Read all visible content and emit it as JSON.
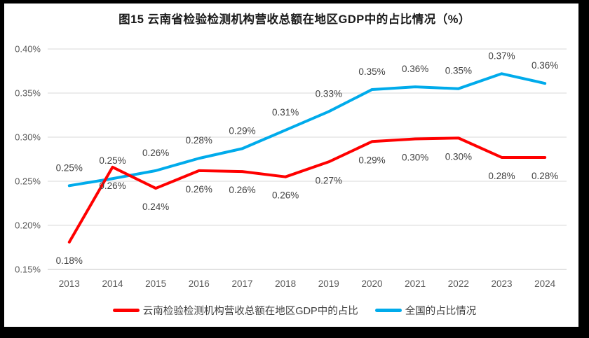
{
  "title": "图15 云南省检验检测机构营收总额在地区GDP中的占比情况（%）",
  "chart_data": {
    "type": "line",
    "title": "图15 云南省检验检测机构营收总额在地区GDP中的占比情况（%）",
    "categories": [
      "2013",
      "2014",
      "2015",
      "2016",
      "2017",
      "2018",
      "2019",
      "2020",
      "2021",
      "2022",
      "2023",
      "2024"
    ],
    "series": [
      {
        "name": "云南检验检测机构营收总额在地区GDP中的占比",
        "color": "#FF0000",
        "label_position": "below",
        "values": [
          0.18,
          0.26,
          0.24,
          0.26,
          0.26,
          0.26,
          0.27,
          0.29,
          0.3,
          0.3,
          0.28,
          0.28
        ],
        "labels": [
          "0.18%",
          "0.26%",
          "0.24%",
          "0.26%",
          "0.26%",
          "0.26%",
          "0.27%",
          "0.29%",
          "0.30%",
          "0.30%",
          "0.28%",
          "0.28%"
        ],
        "values_drawn": [
          0.181,
          0.266,
          0.242,
          0.262,
          0.261,
          0.255,
          0.272,
          0.295,
          0.298,
          0.299,
          0.277,
          0.277
        ]
      },
      {
        "name": "全国的占比情况",
        "color": "#00ABEB",
        "label_position": "above",
        "values": [
          0.25,
          0.25,
          0.26,
          0.28,
          0.29,
          0.31,
          0.33,
          0.35,
          0.36,
          0.35,
          0.37,
          0.36
        ],
        "labels": [
          "0.25%",
          "0.25%",
          "0.26%",
          "0.28%",
          "0.29%",
          "0.31%",
          "0.33%",
          "0.35%",
          "0.36%",
          "0.35%",
          "0.37%",
          "0.36%"
        ],
        "values_drawn": [
          0.245,
          0.253,
          0.262,
          0.276,
          0.287,
          0.308,
          0.329,
          0.354,
          0.357,
          0.355,
          0.372,
          0.361
        ]
      }
    ],
    "draw_order": [
      1,
      0
    ],
    "y_ticks": [
      {
        "label": "0.40%",
        "value": 0.4
      },
      {
        "label": "0.35%",
        "value": 0.35
      },
      {
        "label": "0.30%",
        "value": 0.3
      },
      {
        "label": "0.25%",
        "value": 0.25
      },
      {
        "label": "0.20%",
        "value": 0.2
      },
      {
        "label": "0.15%",
        "value": 0.15
      }
    ],
    "ylim": [
      0.15,
      0.4
    ],
    "grid": true,
    "legend_position": "bottom",
    "unit": "%"
  },
  "colors": {
    "frame": "#000000",
    "panel": "#FFFFFF",
    "grid": "#D9D9D9",
    "axis_line": "#C6C6C6",
    "tick_text": "#595959",
    "data_label": "#404040",
    "series_yunnan": "#FF0000",
    "series_national": "#00ABEB"
  }
}
